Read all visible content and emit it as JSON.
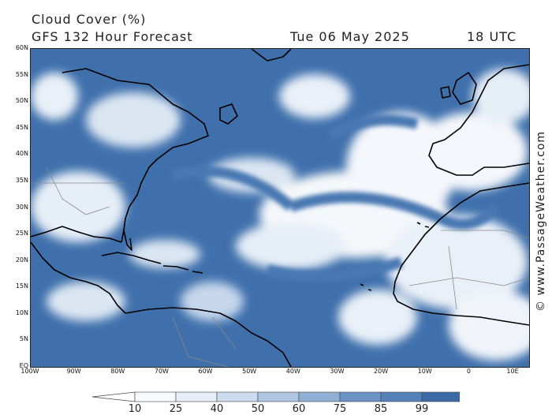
{
  "header": {
    "title": "Cloud Cover (%)",
    "subtitle": "GFS 132 Hour Forecast",
    "date": "Tue 06 May 2025",
    "time": "18 UTC"
  },
  "credit": "© www.PassageWeather.com",
  "map": {
    "lat_labels": [
      "60N",
      "55N",
      "50N",
      "45N",
      "40N",
      "35N",
      "30N",
      "25N",
      "20N",
      "15N",
      "10N",
      "5N",
      "EQ"
    ],
    "lon_labels": [
      "100W",
      "90W",
      "80W",
      "70W",
      "60W",
      "50W",
      "40W",
      "30W",
      "20W",
      "10W",
      "0",
      "10E"
    ],
    "colors": {
      "ocean_cloud": "#3f70ac",
      "land_cloud": "#4a78b2",
      "clear": "#ffffff",
      "light_cloud": "#dbe6f2",
      "mid_cloud": "#8fb0d5",
      "coast": "#000000",
      "borders": "#8a8a8a"
    }
  },
  "legend": {
    "values": [
      "10",
      "25",
      "40",
      "50",
      "60",
      "75",
      "85",
      "99"
    ],
    "colors": [
      "#f7f9fc",
      "#e6eef7",
      "#ccdcee",
      "#afc6e3",
      "#8fb0d5",
      "#6c95c5",
      "#5481ba",
      "#3a6aa8"
    ]
  }
}
